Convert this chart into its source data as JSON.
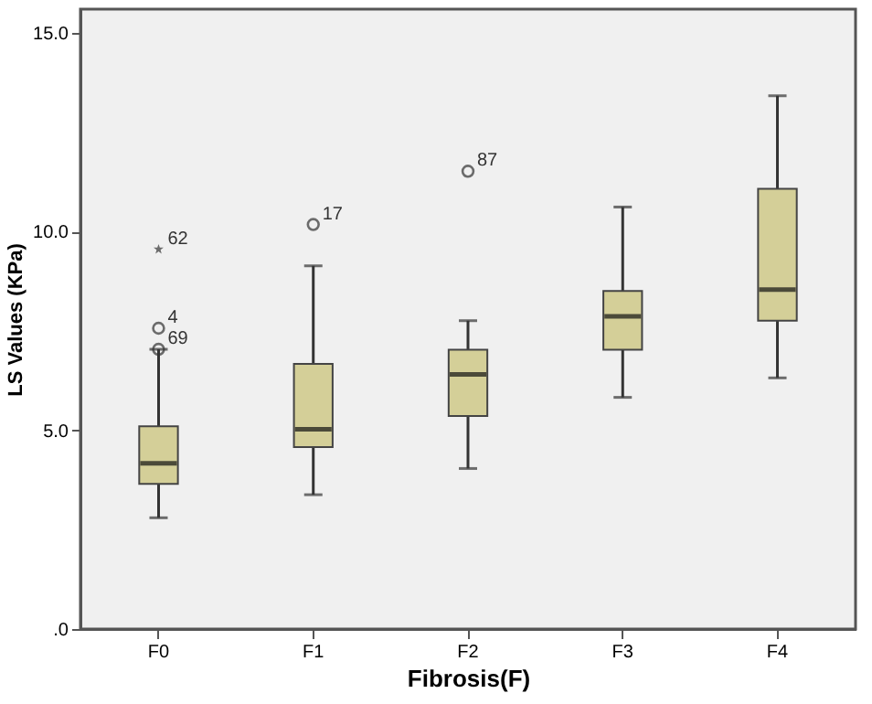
{
  "chart_data": {
    "type": "box",
    "xlabel": "Fibrosis(F)",
    "ylabel": "LS Values (KPa)",
    "categories": [
      "F0",
      "F1",
      "F2",
      "F3",
      "F4"
    ],
    "boxes": [
      {
        "low": 2.8,
        "q1": 3.65,
        "median": 4.17,
        "q3": 5.1,
        "high": 7.04
      },
      {
        "low": 3.38,
        "q1": 4.58,
        "median": 5.03,
        "q3": 6.67,
        "high": 9.14
      },
      {
        "low": 4.04,
        "q1": 5.36,
        "median": 6.41,
        "q3": 7.03,
        "high": 7.76
      },
      {
        "low": 5.83,
        "q1": 7.03,
        "median": 7.87,
        "q3": 8.51,
        "high": 10.62
      },
      {
        "low": 6.32,
        "q1": 7.76,
        "median": 8.54,
        "q3": 11.08,
        "high": 13.42
      }
    ],
    "series": [
      {
        "type": "scatter",
        "marker": "circle",
        "color": "#333333",
        "x": [
          "F0",
          "F0",
          "F1",
          "F2"
        ],
        "values": [
          7.04,
          7.57,
          10.18,
          11.52
        ]
      },
      {
        "type": "scatter",
        "marker": "star",
        "color": "#333333",
        "x": [
          "F0"
        ],
        "values": [
          9.56
        ]
      }
    ],
    "color": "#d4cf98",
    "ylim": [
      0,
      15.6
    ],
    "yticks": [
      {
        "value": 0,
        "label": ".0"
      },
      {
        "value": 5,
        "label": "5.0"
      },
      {
        "value": 10,
        "label": "10.0"
      },
      {
        "value": 15,
        "label": "15.0"
      }
    ],
    "annotations": [
      {
        "text": "62",
        "x": "F0",
        "y": 9.56
      },
      {
        "text": "4",
        "x": "F0",
        "y": 7.57
      },
      {
        "text": "69",
        "x": "F0",
        "y": 7.04
      },
      {
        "text": "17",
        "x": "F1",
        "y": 10.18
      },
      {
        "text": "87",
        "x": "F2",
        "y": 11.52
      }
    ],
    "grid": false
  }
}
